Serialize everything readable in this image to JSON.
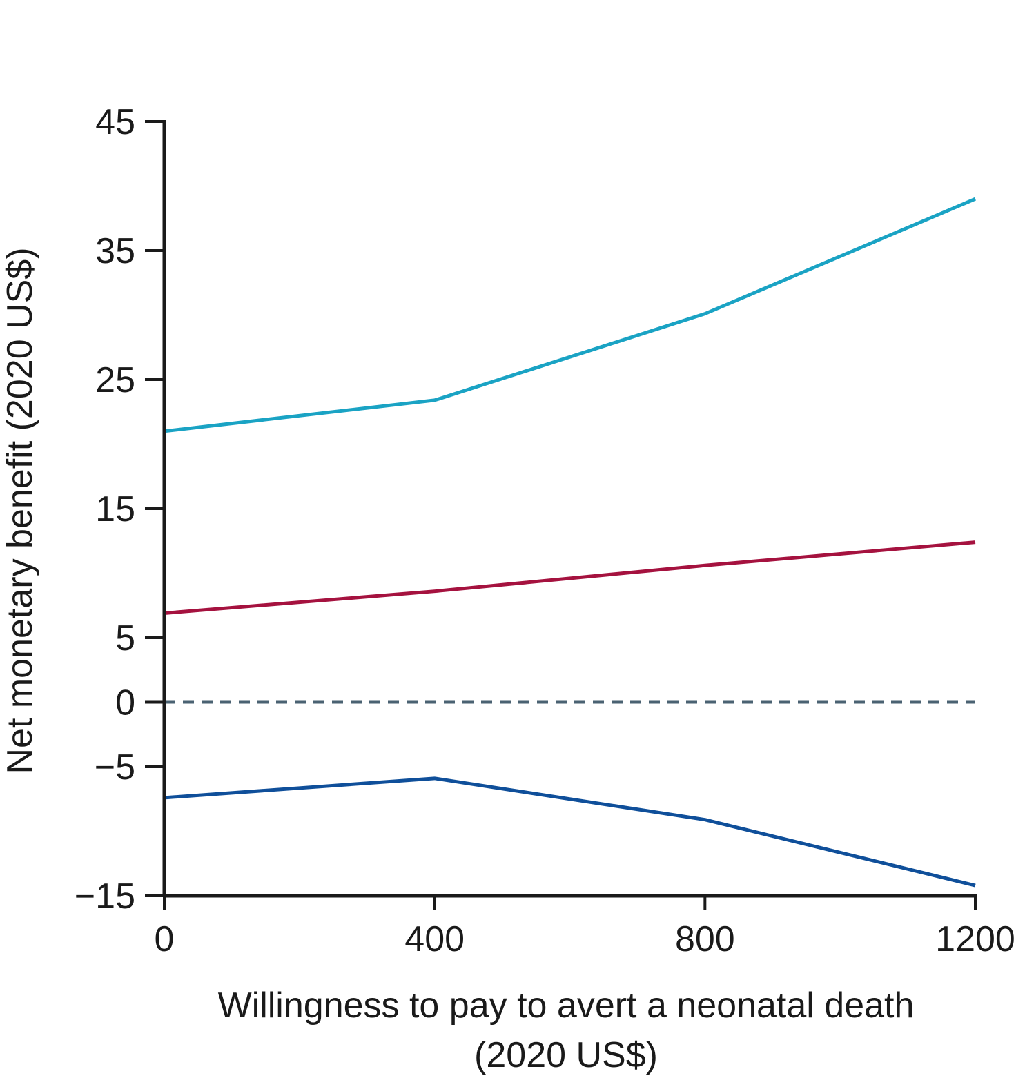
{
  "chart_data": {
    "type": "line",
    "title": "",
    "xlabel": "Willingness to pay to avert a neonatal death",
    "xlabel_line2": "(2020 US$)",
    "ylabel": "Net monetary benefit (2020 US$)",
    "x": [
      0,
      400,
      800,
      1200
    ],
    "xlim": [
      0,
      1200
    ],
    "ylim": [
      -15,
      45
    ],
    "x_ticks": [
      0,
      400,
      800,
      1200
    ],
    "x_tick_labels": [
      "0",
      "400",
      "800",
      "1200"
    ],
    "y_ticks": [
      -15,
      -5,
      0,
      5,
      15,
      25,
      35,
      45
    ],
    "y_tick_labels": [
      "−15",
      "−5",
      "0",
      "5",
      "15",
      "25",
      "35",
      "45"
    ],
    "grid": false,
    "series": [
      {
        "values": [
          21.0,
          23.4,
          30.1,
          39.0
        ],
        "color": "#1aa3c4"
      },
      {
        "values": [
          6.9,
          8.6,
          10.6,
          12.4
        ],
        "color": "#a5123f"
      },
      {
        "values": [
          -7.4,
          -5.9,
          -9.1,
          -14.2
        ],
        "color": "#0f4f9a"
      }
    ],
    "reference_line": {
      "y": 0,
      "style": "dashed",
      "color": "#4a6272"
    }
  }
}
